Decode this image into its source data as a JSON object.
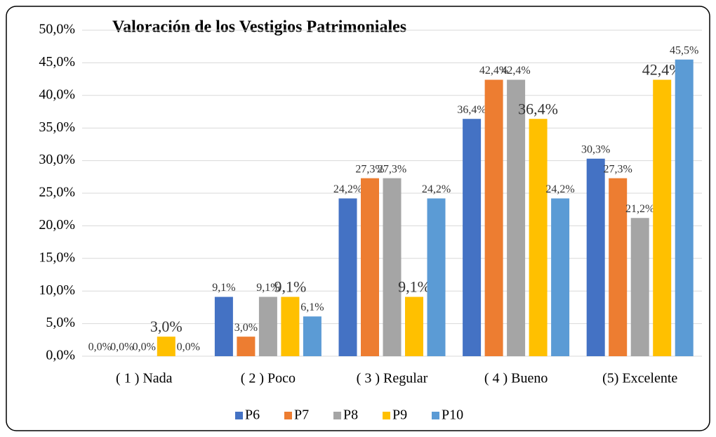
{
  "chart_data": {
    "type": "bar",
    "title": "Valoración de los Vestigios Patrimoniales",
    "categories": [
      "( 1 ) Nada",
      "( 2 ) Poco",
      "( 3 ) Regular",
      "( 4 ) Bueno",
      "(5) Excelente"
    ],
    "series": [
      {
        "name": "P6",
        "color": "#4472c4",
        "values": [
          0,
          9.1,
          24.2,
          36.4,
          30.3
        ],
        "value_labels": [
          "0,0%",
          "9,1%",
          "24,2%",
          "36,4%",
          "30,3%"
        ]
      },
      {
        "name": "P7",
        "color": "#ed7d31",
        "values": [
          0,
          3.0,
          27.3,
          42.4,
          27.3
        ],
        "value_labels": [
          "0,0%",
          "3,0%",
          "27,3%",
          "42,4%",
          "27,3%"
        ]
      },
      {
        "name": "P8",
        "color": "#a5a5a5",
        "values": [
          0,
          9.1,
          27.3,
          42.4,
          21.2
        ],
        "value_labels": [
          "0,0%",
          "9,1%",
          "27,3%",
          "42,4%",
          "21,2%"
        ]
      },
      {
        "name": "P9",
        "color": "#ffc000",
        "values": [
          3.0,
          9.1,
          9.1,
          36.4,
          42.4
        ],
        "value_labels": [
          "3,0%",
          "9,1%",
          "9,1%",
          "36,4%",
          "42,4%"
        ]
      },
      {
        "name": "P10",
        "color": "#5b9bd5",
        "values": [
          0,
          6.1,
          24.2,
          24.2,
          45.5
        ],
        "value_labels": [
          "0,0%",
          "6,1%",
          "24,2%",
          "24,2%",
          "45,5%"
        ]
      }
    ],
    "ylim": [
      0,
      50
    ],
    "yticks": [
      {
        "value": 0,
        "label": "0,0%"
      },
      {
        "value": 5,
        "label": "5,0%"
      },
      {
        "value": 10,
        "label": "10,0%"
      },
      {
        "value": 15,
        "label": "15,0%"
      },
      {
        "value": 20,
        "label": "20,0%"
      },
      {
        "value": 25,
        "label": "25,0%"
      },
      {
        "value": 30,
        "label": "30,0%"
      },
      {
        "value": 35,
        "label": "35,0%"
      },
      {
        "value": 40,
        "label": "40,0%"
      },
      {
        "value": 45,
        "label": "45,0%"
      },
      {
        "value": 50,
        "label": "50,0%"
      }
    ],
    "grid": true,
    "legend": "bottom"
  }
}
